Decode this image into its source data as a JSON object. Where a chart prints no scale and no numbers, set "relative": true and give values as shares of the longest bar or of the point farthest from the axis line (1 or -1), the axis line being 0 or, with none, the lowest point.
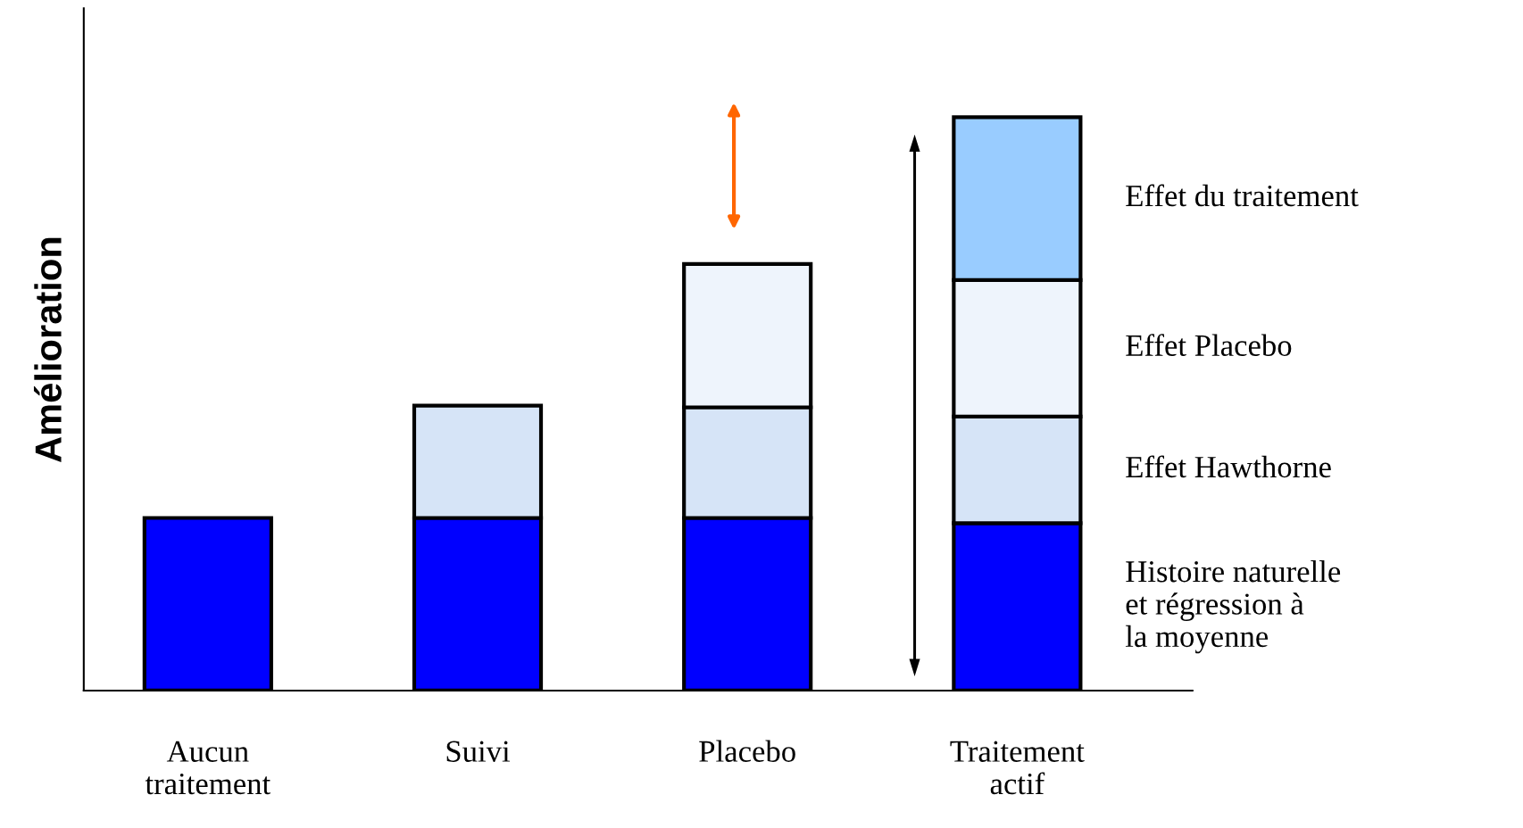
{
  "chart_data": {
    "type": "bar",
    "stacked": true,
    "relative": true,
    "ylabel": "Amélioration",
    "legend": false,
    "grid": false,
    "categories": [
      "Aucun\ntraitement",
      "Suivi",
      "Placebo",
      "Traitement\nactif"
    ],
    "series": [
      {
        "name": "Histoire naturelle\net régression à\nla moyenne",
        "color": "#0000ff",
        "values": [
          0.301,
          0.301,
          0.301,
          0.292
        ]
      },
      {
        "name": "Effet Hawthorne",
        "color": "#d6e4f7",
        "values": [
          null,
          0.196,
          0.193,
          0.186
        ]
      },
      {
        "name": "Effet Placebo",
        "color": "#eef4fc",
        "values": [
          null,
          null,
          0.25,
          0.238
        ]
      },
      {
        "name": "Effet du traitement",
        "color": "#99ccff",
        "values": [
          null,
          null,
          null,
          0.284
        ]
      }
    ]
  }
}
